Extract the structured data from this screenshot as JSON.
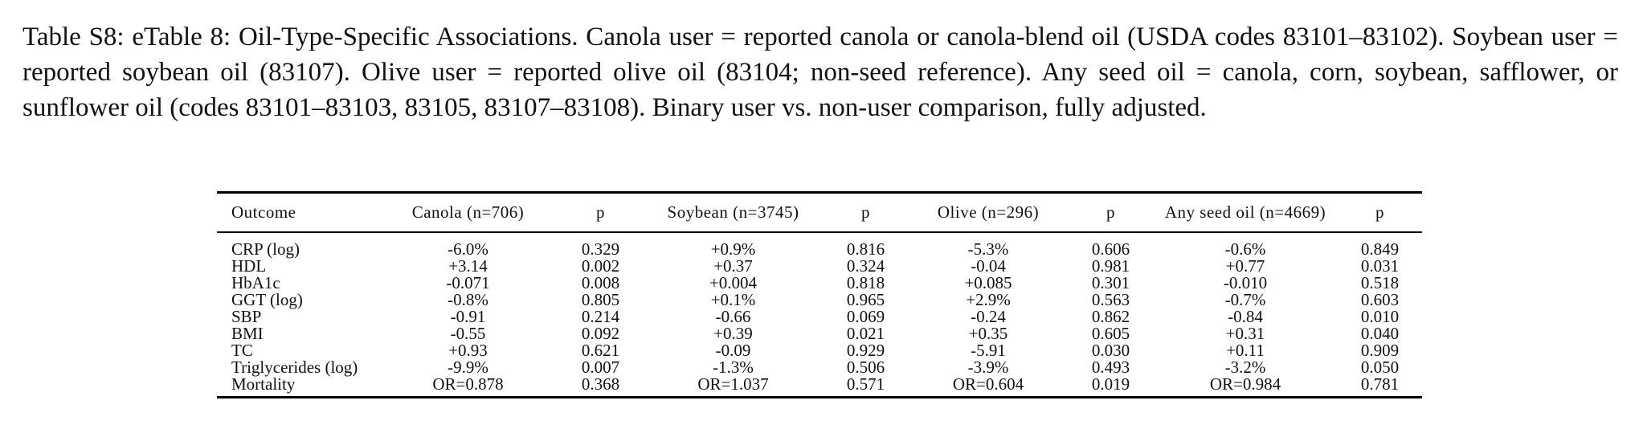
{
  "caption": "Table S8: eTable 8: Oil-Type-Specific Associations. Canola user = reported canola or canola-blend oil (USDA codes 83101–83102). Soybean user = reported soybean oil (83107). Olive user = reported olive oil (83104; non-seed reference). Any seed oil = canola, corn, soybean, safflower, or sunflower oil (codes 83101–83103, 83105, 83107–83108). Binary user vs. non-user comparison, fully adjusted.",
  "table": {
    "headers": [
      "Outcome",
      "Canola (n=706)",
      "p",
      "Soybean (n=3745)",
      "p",
      "Olive (n=296)",
      "p",
      "Any seed oil (n=4669)",
      "p"
    ],
    "rows": [
      [
        "CRP (log)",
        "-6.0%",
        "0.329",
        "+0.9%",
        "0.816",
        "-5.3%",
        "0.606",
        "-0.6%",
        "0.849"
      ],
      [
        "HDL",
        "+3.14",
        "0.002",
        "+0.37",
        "0.324",
        "-0.04",
        "0.981",
        "+0.77",
        "0.031"
      ],
      [
        "HbA1c",
        "-0.071",
        "0.008",
        "+0.004",
        "0.818",
        "+0.085",
        "0.301",
        "-0.010",
        "0.518"
      ],
      [
        "GGT (log)",
        "-0.8%",
        "0.805",
        "+0.1%",
        "0.965",
        "+2.9%",
        "0.563",
        "-0.7%",
        "0.603"
      ],
      [
        "SBP",
        "-0.91",
        "0.214",
        "-0.66",
        "0.069",
        "-0.24",
        "0.862",
        "-0.84",
        "0.010"
      ],
      [
        "BMI",
        "-0.55",
        "0.092",
        "+0.39",
        "0.021",
        "+0.35",
        "0.605",
        "+0.31",
        "0.040"
      ],
      [
        "TC",
        "+0.93",
        "0.621",
        "-0.09",
        "0.929",
        "-5.91",
        "0.030",
        "+0.11",
        "0.909"
      ],
      [
        "Triglycerides (log)",
        "-9.9%",
        "0.007",
        "-1.3%",
        "0.506",
        "-3.9%",
        "0.493",
        "-3.2%",
        "0.050"
      ],
      [
        "Mortality",
        "OR=0.878",
        "0.368",
        "OR=1.037",
        "0.571",
        "OR=0.604",
        "0.019",
        "OR=0.984",
        "0.781"
      ]
    ]
  }
}
